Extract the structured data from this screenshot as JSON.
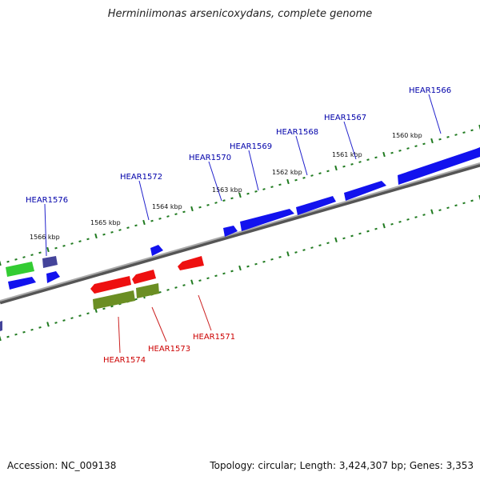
{
  "title": "Herminiimonas arsenicoxydans, complete genome",
  "footer": {
    "accession": "Accession: NC_009138",
    "stats": "Topology: circular; Length: 3,424,307 bp; Genes: 3,353"
  },
  "colors": {
    "forward_gene": "#1010f0",
    "reverse_gene": "#ee1010",
    "other_forward": "#44449a",
    "rna_green": "#33cc33",
    "olive": "#6b8e23",
    "tick": "#1f7a1f",
    "backbone": "#888888",
    "forward_label": "#0000aa",
    "reverse_label": "#cc0000"
  },
  "scale_labels": [
    "1560 kbp",
    "1561 kbp",
    "1562 kbp",
    "1563 kbp",
    "1564 kbp",
    "1565 kbp",
    "1566 kbp"
  ],
  "forward_gene_labels": [
    "HEAR1566",
    "HEAR1567",
    "HEAR1568",
    "HEAR1569",
    "HEAR1570",
    "HEAR1572",
    "HEAR1576"
  ],
  "reverse_gene_labels": [
    "HEAR1571",
    "HEAR1573",
    "HEAR1574"
  ]
}
